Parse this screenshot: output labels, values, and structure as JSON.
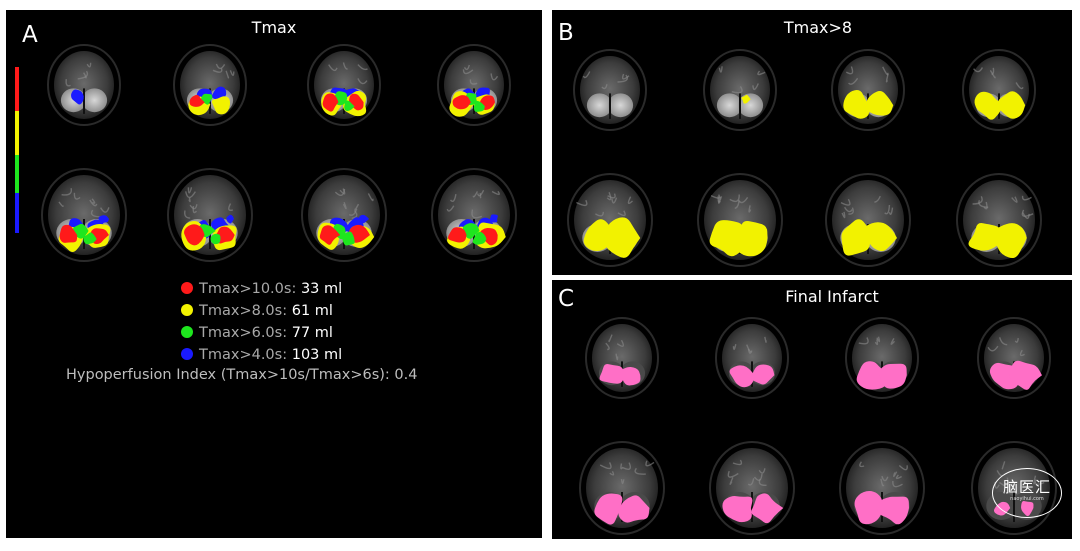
{
  "panels": {
    "a": {
      "letter": "A",
      "title": "Tmax"
    },
    "b": {
      "letter": "B",
      "title": "Tmax>8"
    },
    "c": {
      "letter": "C",
      "title": "Final Infarct"
    }
  },
  "colors": {
    "red": "#ff1a1a",
    "yellow": "#f2f200",
    "green": "#1ee61e",
    "blue": "#1a1aff",
    "pink": "#ff6fc6"
  },
  "legend": [
    {
      "label": "Tmax>10.0s:",
      "value": "33 ml",
      "color": "#ff1a1a"
    },
    {
      "label": "Tmax>8.0s:",
      "value": "61 ml",
      "color": "#f2f200"
    },
    {
      "label": "Tmax>6.0s:",
      "value": "77 ml",
      "color": "#1ee61e"
    },
    {
      "label": "Tmax>4.0s:",
      "value": "103 ml",
      "color": "#1a1aff"
    }
  ],
  "hypoperfusion": "Hypoperfusion Index (Tmax>10s/Tmax>6s): 0.4",
  "watermark": {
    "main": "脑医汇",
    "sub": "naoyihui.com"
  }
}
